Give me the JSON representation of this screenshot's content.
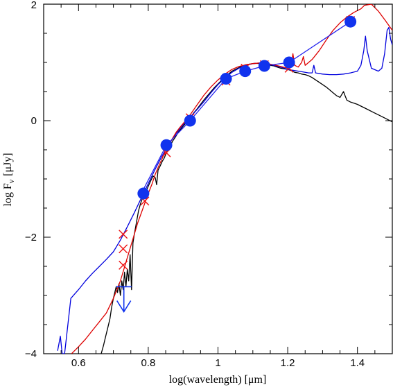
{
  "chart_data": {
    "type": "line",
    "title": "",
    "xlabel": "log(wavelength) [μm]",
    "ylabel": "log F",
    "ylabel_sub": "ν",
    "ylabel_unit": "[μJy]",
    "xlim": [
      0.5,
      1.5
    ],
    "ylim": [
      -4,
      2
    ],
    "x_ticks": [
      0.6,
      0.8,
      1.0,
      1.2,
      1.4
    ],
    "y_ticks": [
      -4,
      -2,
      0,
      2
    ],
    "x_tick_labels": [
      "0.6",
      "0.8",
      "1",
      "1.2",
      "1.4"
    ],
    "y_tick_labels": [
      "−4",
      "−2",
      "0",
      "2"
    ],
    "grid": false,
    "series": [
      {
        "kind": "line",
        "color": "#000000",
        "points": [
          [
            0.665,
            -4.0
          ],
          [
            0.672,
            -3.85
          ],
          [
            0.678,
            -3.7
          ],
          [
            0.684,
            -3.55
          ],
          [
            0.69,
            -3.4
          ],
          [
            0.695,
            -3.2
          ],
          [
            0.7,
            -3.05
          ],
          [
            0.704,
            -2.95
          ],
          [
            0.708,
            -2.85
          ],
          [
            0.712,
            -2.95
          ],
          [
            0.716,
            -2.8
          ],
          [
            0.72,
            -3.0
          ],
          [
            0.724,
            -2.75
          ],
          [
            0.728,
            -2.9
          ],
          [
            0.732,
            -2.6
          ],
          [
            0.736,
            -2.85
          ],
          [
            0.74,
            -2.55
          ],
          [
            0.744,
            -2.75
          ],
          [
            0.748,
            -2.3
          ],
          [
            0.752,
            -2.9
          ],
          [
            0.756,
            -2.1
          ],
          [
            0.76,
            -1.95
          ],
          [
            0.766,
            -1.75
          ],
          [
            0.772,
            -1.55
          ],
          [
            0.778,
            -1.42
          ],
          [
            0.784,
            -1.32
          ],
          [
            0.79,
            -1.25
          ],
          [
            0.796,
            -1.18
          ],
          [
            0.802,
            -1.1
          ],
          [
            0.808,
            -1.02
          ],
          [
            0.814,
            -0.95
          ],
          [
            0.82,
            -0.98
          ],
          [
            0.824,
            -1.1
          ],
          [
            0.828,
            -0.85
          ],
          [
            0.834,
            -0.78
          ],
          [
            0.84,
            -0.7
          ],
          [
            0.846,
            -0.64
          ],
          [
            0.852,
            -0.55
          ],
          [
            0.858,
            -0.47
          ],
          [
            0.864,
            -0.42
          ],
          [
            0.87,
            -0.35
          ],
          [
            0.878,
            -0.28
          ],
          [
            0.886,
            -0.2
          ],
          [
            0.894,
            -0.14
          ],
          [
            0.902,
            -0.08
          ],
          [
            0.91,
            -0.03
          ],
          [
            0.92,
            0.05
          ],
          [
            0.93,
            0.13
          ],
          [
            0.94,
            0.2
          ],
          [
            0.95,
            0.28
          ],
          [
            0.96,
            0.36
          ],
          [
            0.97,
            0.43
          ],
          [
            0.98,
            0.5
          ],
          [
            0.99,
            0.57
          ],
          [
            1.0,
            0.63
          ],
          [
            1.01,
            0.69
          ],
          [
            1.02,
            0.75
          ],
          [
            1.03,
            0.8
          ],
          [
            1.04,
            0.85
          ],
          [
            1.05,
            0.88
          ],
          [
            1.06,
            0.91
          ],
          [
            1.07,
            0.94
          ],
          [
            1.08,
            0.96
          ],
          [
            1.09,
            0.97
          ],
          [
            1.1,
            0.98
          ],
          [
            1.11,
            0.985
          ],
          [
            1.12,
            0.98
          ],
          [
            1.13,
            0.97
          ],
          [
            1.14,
            0.96
          ],
          [
            1.15,
            0.95
          ],
          [
            1.16,
            0.94
          ],
          [
            1.17,
            0.92
          ],
          [
            1.18,
            0.9
          ],
          [
            1.19,
            0.89
          ],
          [
            1.2,
            0.88
          ],
          [
            1.21,
            0.86
          ],
          [
            1.22,
            0.83
          ],
          [
            1.23,
            0.82
          ],
          [
            1.24,
            0.8
          ],
          [
            1.25,
            0.79
          ],
          [
            1.26,
            0.77
          ],
          [
            1.27,
            0.74
          ],
          [
            1.28,
            0.7
          ],
          [
            1.29,
            0.66
          ],
          [
            1.3,
            0.62
          ],
          [
            1.31,
            0.58
          ],
          [
            1.32,
            0.53
          ],
          [
            1.33,
            0.48
          ],
          [
            1.34,
            0.43
          ],
          [
            1.35,
            0.4
          ],
          [
            1.355,
            0.45
          ],
          [
            1.36,
            0.5
          ],
          [
            1.365,
            0.42
          ],
          [
            1.37,
            0.35
          ],
          [
            1.38,
            0.32
          ],
          [
            1.39,
            0.3
          ],
          [
            1.4,
            0.28
          ],
          [
            1.41,
            0.25
          ],
          [
            1.42,
            0.22
          ],
          [
            1.43,
            0.19
          ],
          [
            1.44,
            0.16
          ],
          [
            1.45,
            0.13
          ],
          [
            1.46,
            0.1
          ],
          [
            1.47,
            0.07
          ],
          [
            1.48,
            0.04
          ],
          [
            1.49,
            0.01
          ],
          [
            1.5,
            -0.02
          ]
        ]
      },
      {
        "kind": "line",
        "color": "#0000dd",
        "points": [
          [
            0.54,
            -3.95
          ],
          [
            0.548,
            -3.7
          ],
          [
            0.553,
            -4.0
          ],
          [
            0.56,
            -4.0
          ],
          [
            0.578,
            -3.05
          ],
          [
            0.6,
            -2.9
          ],
          [
            0.62,
            -2.75
          ],
          [
            0.64,
            -2.62
          ],
          [
            0.66,
            -2.5
          ],
          [
            0.68,
            -2.38
          ],
          [
            0.7,
            -2.25
          ],
          [
            0.72,
            -2.05
          ],
          [
            0.74,
            -1.82
          ],
          [
            0.76,
            -1.58
          ],
          [
            0.78,
            -1.33
          ],
          [
            0.8,
            -1.08
          ],
          [
            0.82,
            -0.83
          ],
          [
            0.84,
            -0.6
          ],
          [
            0.86,
            -0.4
          ],
          [
            0.88,
            -0.22
          ],
          [
            0.9,
            -0.07
          ],
          [
            0.92,
            0.06
          ],
          [
            0.94,
            0.19
          ],
          [
            0.96,
            0.33
          ],
          [
            0.98,
            0.48
          ],
          [
            1.0,
            0.62
          ],
          [
            1.02,
            0.73
          ],
          [
            1.04,
            0.83
          ],
          [
            1.06,
            0.9
          ],
          [
            1.08,
            0.95
          ],
          [
            1.1,
            0.98
          ],
          [
            1.12,
            0.99
          ],
          [
            1.14,
            0.98
          ],
          [
            1.16,
            0.95
          ],
          [
            1.18,
            0.92
          ],
          [
            1.2,
            0.88
          ],
          [
            1.22,
            0.86
          ],
          [
            1.24,
            0.84
          ],
          [
            1.26,
            0.82
          ],
          [
            1.27,
            0.82
          ],
          [
            1.275,
            0.95
          ],
          [
            1.28,
            0.82
          ],
          [
            1.3,
            0.8
          ],
          [
            1.32,
            0.79
          ],
          [
            1.34,
            0.79
          ],
          [
            1.36,
            0.8
          ],
          [
            1.38,
            0.82
          ],
          [
            1.4,
            0.85
          ],
          [
            1.41,
            0.95
          ],
          [
            1.418,
            1.2
          ],
          [
            1.423,
            1.45
          ],
          [
            1.428,
            1.2
          ],
          [
            1.44,
            0.9
          ],
          [
            1.46,
            0.85
          ],
          [
            1.47,
            0.9
          ],
          [
            1.478,
            1.15
          ],
          [
            1.485,
            1.55
          ],
          [
            1.49,
            1.6
          ],
          [
            1.495,
            1.4
          ],
          [
            1.5,
            1.3
          ]
        ]
      },
      {
        "kind": "line",
        "color": "#dd0000",
        "points": [
          [
            0.58,
            -4.0
          ],
          [
            0.6,
            -3.88
          ],
          [
            0.62,
            -3.75
          ],
          [
            0.64,
            -3.6
          ],
          [
            0.66,
            -3.45
          ],
          [
            0.68,
            -3.3
          ],
          [
            0.7,
            -3.05
          ],
          [
            0.72,
            -2.75
          ],
          [
            0.74,
            -2.35
          ],
          [
            0.755,
            -2.05
          ],
          [
            0.77,
            -1.75
          ],
          [
            0.785,
            -1.5
          ],
          [
            0.8,
            -1.25
          ],
          [
            0.81,
            -1.1
          ],
          [
            0.82,
            -0.92
          ],
          [
            0.83,
            -0.78
          ],
          [
            0.84,
            -0.65
          ],
          [
            0.85,
            -0.52
          ],
          [
            0.86,
            -0.4
          ],
          [
            0.87,
            -0.3
          ],
          [
            0.88,
            -0.2
          ],
          [
            0.89,
            -0.12
          ],
          [
            0.9,
            -0.05
          ],
          [
            0.92,
            0.1
          ],
          [
            0.94,
            0.27
          ],
          [
            0.96,
            0.44
          ],
          [
            0.98,
            0.58
          ],
          [
            1.0,
            0.7
          ],
          [
            1.02,
            0.8
          ],
          [
            1.04,
            0.88
          ],
          [
            1.06,
            0.93
          ],
          [
            1.08,
            0.96
          ],
          [
            1.1,
            0.98
          ],
          [
            1.12,
            0.99
          ],
          [
            1.14,
            0.98
          ],
          [
            1.16,
            0.96
          ],
          [
            1.18,
            0.93
          ],
          [
            1.2,
            0.9
          ],
          [
            1.21,
            0.95
          ],
          [
            1.215,
            1.15
          ],
          [
            1.22,
            0.95
          ],
          [
            1.23,
            0.92
          ],
          [
            1.24,
            1.0
          ],
          [
            1.245,
            1.1
          ],
          [
            1.25,
            0.95
          ],
          [
            1.27,
            1.05
          ],
          [
            1.29,
            1.2
          ],
          [
            1.31,
            1.38
          ],
          [
            1.33,
            1.55
          ],
          [
            1.35,
            1.68
          ],
          [
            1.37,
            1.78
          ],
          [
            1.39,
            1.86
          ],
          [
            1.41,
            1.92
          ],
          [
            1.42,
            1.98
          ],
          [
            1.44,
            2.0
          ],
          [
            1.46,
            1.88
          ],
          [
            1.48,
            1.72
          ],
          [
            1.5,
            1.55
          ]
        ]
      },
      {
        "kind": "line",
        "color": "#2222ee",
        "points": [
          [
            0.78,
            -1.25
          ],
          [
            0.852,
            -0.42
          ],
          [
            0.92,
            0.0
          ],
          [
            1.023,
            0.72
          ],
          [
            1.078,
            0.85
          ],
          [
            1.133,
            0.94
          ],
          [
            1.204,
            1.0
          ],
          [
            1.38,
            1.7
          ]
        ]
      },
      {
        "kind": "scatter",
        "marker": "x",
        "color": "#ee1111",
        "points": [
          [
            0.728,
            -1.95
          ],
          [
            0.728,
            -2.2
          ],
          [
            0.728,
            -2.48
          ],
          [
            0.79,
            -1.38
          ],
          [
            0.852,
            -0.55
          ],
          [
            0.92,
            0.05
          ],
          [
            1.023,
            0.68
          ],
          [
            1.078,
            0.9
          ],
          [
            1.133,
            0.96
          ],
          [
            1.204,
            0.9
          ],
          [
            1.38,
            1.72
          ]
        ]
      },
      {
        "kind": "scatter",
        "marker": "circle",
        "color": "#1133ee",
        "points": [
          [
            0.786,
            -1.25
          ],
          [
            0.852,
            -0.42
          ],
          [
            0.92,
            0.0
          ],
          [
            1.023,
            0.72
          ],
          [
            1.078,
            0.85
          ],
          [
            1.133,
            0.94
          ],
          [
            1.204,
            1.0
          ],
          [
            1.38,
            1.7
          ]
        ]
      },
      {
        "kind": "upper_limit",
        "color": "#1133ee",
        "x": 0.73,
        "y": -2.85,
        "x_extent": [
          0.708,
          0.752
        ],
        "y_to": -3.28
      }
    ]
  }
}
